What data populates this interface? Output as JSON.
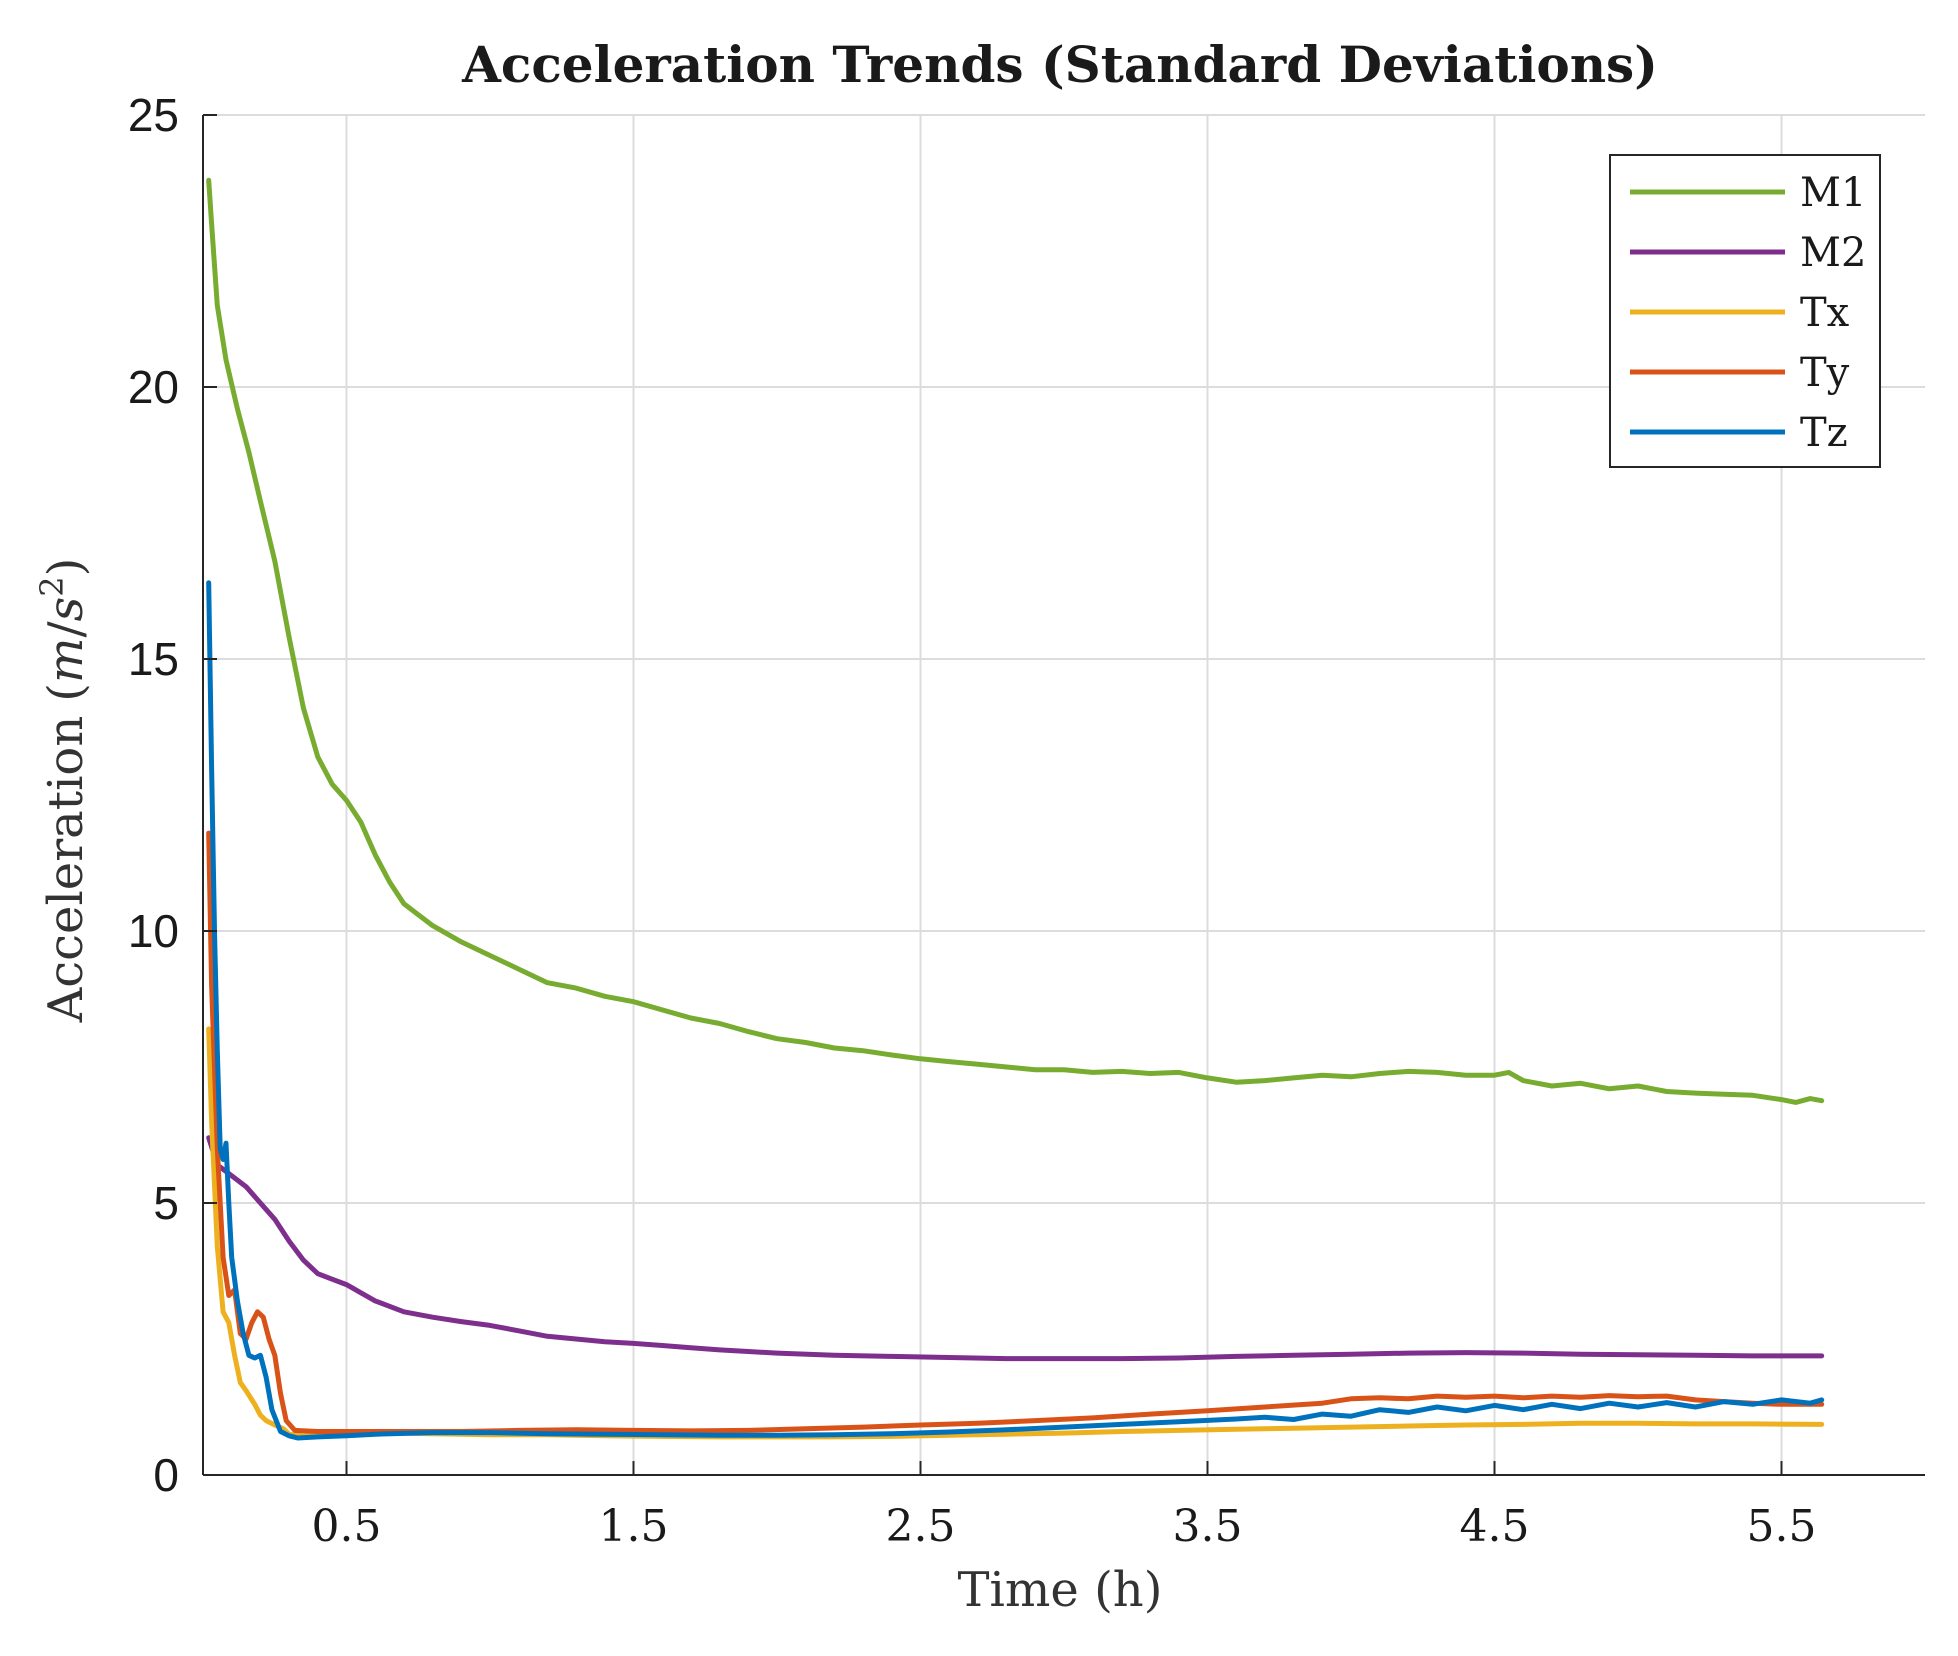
{
  "chart_data": {
    "type": "line",
    "title": "Acceleration Trends (Standard Deviations)",
    "xlabel": "Time (h)",
    "ylabel": "Acceleration",
    "ylabel_unit": "(m/s²)",
    "ylabel_unit_parts": {
      "open": "(",
      "m": "m",
      "slash": "/",
      "s": "s",
      "exp": "2",
      "close": ")"
    },
    "xlim": [
      0,
      6
    ],
    "ylim": [
      0,
      25
    ],
    "xticks": [
      0.5,
      1.5,
      2.5,
      3.5,
      4.5,
      5.5
    ],
    "xtick_labels": [
      "0.5",
      "1.5",
      "2.5",
      "3.5",
      "4.5",
      "5.5"
    ],
    "yticks": [
      0,
      5,
      10,
      15,
      20,
      25
    ],
    "ytick_labels": [
      "0",
      "5",
      "10",
      "15",
      "20",
      "25"
    ],
    "grid": true,
    "legend_position": "top-right",
    "series": [
      {
        "name": "M1",
        "color": "#77ac30",
        "points": [
          [
            0.02,
            23.8
          ],
          [
            0.03,
            23.0
          ],
          [
            0.05,
            21.5
          ],
          [
            0.08,
            20.5
          ],
          [
            0.12,
            19.6
          ],
          [
            0.16,
            18.8
          ],
          [
            0.2,
            17.9
          ],
          [
            0.25,
            16.8
          ],
          [
            0.3,
            15.4
          ],
          [
            0.35,
            14.1
          ],
          [
            0.4,
            13.2
          ],
          [
            0.45,
            12.7
          ],
          [
            0.5,
            12.4
          ],
          [
            0.55,
            12.0
          ],
          [
            0.6,
            11.4
          ],
          [
            0.65,
            10.9
          ],
          [
            0.7,
            10.5
          ],
          [
            0.75,
            10.3
          ],
          [
            0.8,
            10.1
          ],
          [
            0.9,
            9.8
          ],
          [
            1.0,
            9.55
          ],
          [
            1.1,
            9.3
          ],
          [
            1.2,
            9.05
          ],
          [
            1.3,
            8.95
          ],
          [
            1.4,
            8.8
          ],
          [
            1.5,
            8.7
          ],
          [
            1.6,
            8.55
          ],
          [
            1.7,
            8.4
          ],
          [
            1.8,
            8.3
          ],
          [
            1.9,
            8.15
          ],
          [
            2.0,
            8.02
          ],
          [
            2.1,
            7.95
          ],
          [
            2.2,
            7.85
          ],
          [
            2.3,
            7.8
          ],
          [
            2.4,
            7.72
          ],
          [
            2.5,
            7.65
          ],
          [
            2.6,
            7.6
          ],
          [
            2.7,
            7.55
          ],
          [
            2.8,
            7.5
          ],
          [
            2.9,
            7.45
          ],
          [
            3.0,
            7.45
          ],
          [
            3.1,
            7.4
          ],
          [
            3.2,
            7.42
          ],
          [
            3.3,
            7.38
          ],
          [
            3.4,
            7.4
          ],
          [
            3.5,
            7.3
          ],
          [
            3.6,
            7.22
          ],
          [
            3.7,
            7.25
          ],
          [
            3.8,
            7.3
          ],
          [
            3.9,
            7.35
          ],
          [
            4.0,
            7.32
          ],
          [
            4.1,
            7.38
          ],
          [
            4.2,
            7.42
          ],
          [
            4.3,
            7.4
          ],
          [
            4.4,
            7.35
          ],
          [
            4.5,
            7.35
          ],
          [
            4.55,
            7.4
          ],
          [
            4.6,
            7.25
          ],
          [
            4.7,
            7.15
          ],
          [
            4.8,
            7.2
          ],
          [
            4.9,
            7.1
          ],
          [
            5.0,
            7.15
          ],
          [
            5.1,
            7.05
          ],
          [
            5.2,
            7.02
          ],
          [
            5.3,
            7.0
          ],
          [
            5.4,
            6.98
          ],
          [
            5.5,
            6.9
          ],
          [
            5.55,
            6.85
          ],
          [
            5.6,
            6.92
          ],
          [
            5.64,
            6.88
          ]
        ]
      },
      {
        "name": "M2",
        "color": "#7e2f8e",
        "points": [
          [
            0.02,
            6.2
          ],
          [
            0.05,
            5.7
          ],
          [
            0.1,
            5.5
          ],
          [
            0.15,
            5.3
          ],
          [
            0.2,
            5.0
          ],
          [
            0.25,
            4.7
          ],
          [
            0.3,
            4.3
          ],
          [
            0.35,
            3.95
          ],
          [
            0.4,
            3.7
          ],
          [
            0.45,
            3.6
          ],
          [
            0.5,
            3.5
          ],
          [
            0.55,
            3.35
          ],
          [
            0.6,
            3.2
          ],
          [
            0.7,
            3.0
          ],
          [
            0.8,
            2.9
          ],
          [
            0.9,
            2.82
          ],
          [
            1.0,
            2.75
          ],
          [
            1.1,
            2.65
          ],
          [
            1.2,
            2.55
          ],
          [
            1.3,
            2.5
          ],
          [
            1.4,
            2.45
          ],
          [
            1.5,
            2.42
          ],
          [
            1.6,
            2.38
          ],
          [
            1.7,
            2.34
          ],
          [
            1.8,
            2.3
          ],
          [
            1.9,
            2.27
          ],
          [
            2.0,
            2.24
          ],
          [
            2.2,
            2.2
          ],
          [
            2.4,
            2.18
          ],
          [
            2.6,
            2.16
          ],
          [
            2.8,
            2.14
          ],
          [
            3.0,
            2.14
          ],
          [
            3.2,
            2.14
          ],
          [
            3.4,
            2.15
          ],
          [
            3.6,
            2.18
          ],
          [
            3.8,
            2.2
          ],
          [
            4.0,
            2.22
          ],
          [
            4.2,
            2.24
          ],
          [
            4.4,
            2.25
          ],
          [
            4.6,
            2.24
          ],
          [
            4.8,
            2.22
          ],
          [
            5.0,
            2.21
          ],
          [
            5.2,
            2.2
          ],
          [
            5.4,
            2.19
          ],
          [
            5.64,
            2.19
          ]
        ]
      },
      {
        "name": "Tx",
        "color": "#edb120",
        "points": [
          [
            0.02,
            8.2
          ],
          [
            0.03,
            6.5
          ],
          [
            0.05,
            4.2
          ],
          [
            0.07,
            3.0
          ],
          [
            0.09,
            2.8
          ],
          [
            0.11,
            2.2
          ],
          [
            0.13,
            1.7
          ],
          [
            0.15,
            1.55
          ],
          [
            0.18,
            1.3
          ],
          [
            0.2,
            1.1
          ],
          [
            0.22,
            1.0
          ],
          [
            0.25,
            0.92
          ],
          [
            0.28,
            0.85
          ],
          [
            0.3,
            0.75
          ],
          [
            0.35,
            0.72
          ],
          [
            0.4,
            0.75
          ],
          [
            0.5,
            0.77
          ],
          [
            0.6,
            0.78
          ],
          [
            0.8,
            0.76
          ],
          [
            1.0,
            0.74
          ],
          [
            1.2,
            0.74
          ],
          [
            1.4,
            0.72
          ],
          [
            1.6,
            0.71
          ],
          [
            1.8,
            0.7
          ],
          [
            2.0,
            0.7
          ],
          [
            2.2,
            0.7
          ],
          [
            2.4,
            0.71
          ],
          [
            2.6,
            0.73
          ],
          [
            2.8,
            0.75
          ],
          [
            3.0,
            0.77
          ],
          [
            3.2,
            0.8
          ],
          [
            3.4,
            0.82
          ],
          [
            3.6,
            0.84
          ],
          [
            3.8,
            0.86
          ],
          [
            4.0,
            0.88
          ],
          [
            4.2,
            0.9
          ],
          [
            4.4,
            0.92
          ],
          [
            4.6,
            0.93
          ],
          [
            4.8,
            0.95
          ],
          [
            5.0,
            0.95
          ],
          [
            5.2,
            0.94
          ],
          [
            5.4,
            0.94
          ],
          [
            5.64,
            0.93
          ]
        ]
      },
      {
        "name": "Ty",
        "color": "#d95319",
        "points": [
          [
            0.02,
            11.8
          ],
          [
            0.03,
            9.0
          ],
          [
            0.05,
            6.0
          ],
          [
            0.07,
            4.0
          ],
          [
            0.09,
            3.3
          ],
          [
            0.11,
            3.4
          ],
          [
            0.13,
            2.6
          ],
          [
            0.15,
            2.5
          ],
          [
            0.17,
            2.8
          ],
          [
            0.19,
            3.0
          ],
          [
            0.21,
            2.9
          ],
          [
            0.23,
            2.5
          ],
          [
            0.25,
            2.2
          ],
          [
            0.27,
            1.5
          ],
          [
            0.29,
            1.0
          ],
          [
            0.32,
            0.82
          ],
          [
            0.4,
            0.8
          ],
          [
            0.5,
            0.8
          ],
          [
            0.7,
            0.8
          ],
          [
            0.9,
            0.8
          ],
          [
            1.1,
            0.82
          ],
          [
            1.3,
            0.83
          ],
          [
            1.5,
            0.82
          ],
          [
            1.7,
            0.81
          ],
          [
            1.9,
            0.82
          ],
          [
            2.1,
            0.85
          ],
          [
            2.3,
            0.88
          ],
          [
            2.5,
            0.92
          ],
          [
            2.7,
            0.95
          ],
          [
            2.9,
            1.0
          ],
          [
            3.1,
            1.05
          ],
          [
            3.3,
            1.12
          ],
          [
            3.5,
            1.18
          ],
          [
            3.7,
            1.25
          ],
          [
            3.9,
            1.32
          ],
          [
            4.0,
            1.4
          ],
          [
            4.1,
            1.42
          ],
          [
            4.2,
            1.4
          ],
          [
            4.3,
            1.45
          ],
          [
            4.4,
            1.43
          ],
          [
            4.5,
            1.45
          ],
          [
            4.6,
            1.42
          ],
          [
            4.7,
            1.45
          ],
          [
            4.8,
            1.43
          ],
          [
            4.9,
            1.46
          ],
          [
            5.0,
            1.44
          ],
          [
            5.1,
            1.45
          ],
          [
            5.2,
            1.38
          ],
          [
            5.3,
            1.35
          ],
          [
            5.4,
            1.32
          ],
          [
            5.5,
            1.3
          ],
          [
            5.64,
            1.3
          ]
        ]
      },
      {
        "name": "Tz",
        "color": "#0072bd",
        "points": [
          [
            0.02,
            16.4
          ],
          [
            0.03,
            13.0
          ],
          [
            0.04,
            10.0
          ],
          [
            0.05,
            7.8
          ],
          [
            0.06,
            6.0
          ],
          [
            0.07,
            5.8
          ],
          [
            0.08,
            6.1
          ],
          [
            0.09,
            5.0
          ],
          [
            0.1,
            4.0
          ],
          [
            0.12,
            3.2
          ],
          [
            0.14,
            2.6
          ],
          [
            0.16,
            2.2
          ],
          [
            0.18,
            2.15
          ],
          [
            0.2,
            2.2
          ],
          [
            0.22,
            1.8
          ],
          [
            0.24,
            1.2
          ],
          [
            0.27,
            0.8
          ],
          [
            0.3,
            0.72
          ],
          [
            0.33,
            0.68
          ],
          [
            0.4,
            0.7
          ],
          [
            0.5,
            0.72
          ],
          [
            0.6,
            0.75
          ],
          [
            0.8,
            0.78
          ],
          [
            1.0,
            0.78
          ],
          [
            1.2,
            0.76
          ],
          [
            1.4,
            0.75
          ],
          [
            1.6,
            0.74
          ],
          [
            1.8,
            0.73
          ],
          [
            2.0,
            0.73
          ],
          [
            2.2,
            0.74
          ],
          [
            2.4,
            0.76
          ],
          [
            2.6,
            0.79
          ],
          [
            2.8,
            0.83
          ],
          [
            3.0,
            0.88
          ],
          [
            3.2,
            0.93
          ],
          [
            3.4,
            0.98
          ],
          [
            3.6,
            1.03
          ],
          [
            3.7,
            1.06
          ],
          [
            3.8,
            1.02
          ],
          [
            3.9,
            1.12
          ],
          [
            4.0,
            1.08
          ],
          [
            4.1,
            1.2
          ],
          [
            4.2,
            1.15
          ],
          [
            4.3,
            1.25
          ],
          [
            4.4,
            1.18
          ],
          [
            4.5,
            1.28
          ],
          [
            4.6,
            1.2
          ],
          [
            4.7,
            1.3
          ],
          [
            4.8,
            1.22
          ],
          [
            4.9,
            1.32
          ],
          [
            5.0,
            1.25
          ],
          [
            5.1,
            1.33
          ],
          [
            5.2,
            1.25
          ],
          [
            5.3,
            1.35
          ],
          [
            5.4,
            1.3
          ],
          [
            5.5,
            1.38
          ],
          [
            5.6,
            1.32
          ],
          [
            5.64,
            1.38
          ]
        ]
      }
    ]
  }
}
